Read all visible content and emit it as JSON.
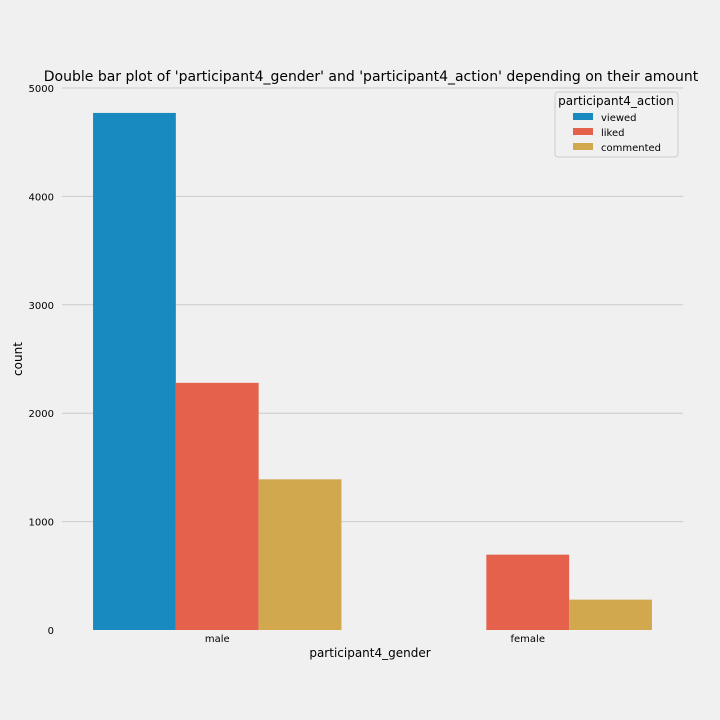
{
  "chart_data": {
    "type": "bar",
    "title": "Double bar plot of 'participant4_gender' and 'participant4_action' depending on their amount",
    "xlabel": "participant4_gender",
    "ylabel": "count",
    "categories": [
      "male",
      "female"
    ],
    "series": [
      {
        "name": "viewed",
        "color": "#188ac0",
        "values": [
          4770,
          0
        ]
      },
      {
        "name": "liked",
        "color": "#e5614b",
        "values": [
          2280,
          695
        ]
      },
      {
        "name": "commented",
        "color": "#d1a84e",
        "values": [
          1390,
          280
        ]
      }
    ],
    "ylim": [
      0,
      5000
    ],
    "yticks": [
      0,
      1000,
      2000,
      3000,
      4000,
      5000
    ],
    "ytick_labels": [
      "0",
      "1000",
      "2000",
      "3000",
      "4000",
      "5000"
    ],
    "legend": {
      "title": "participant4_action",
      "placement": "top-right"
    },
    "grid": "horizontal",
    "colors": {
      "background": "#f0f0f0",
      "grid": "#cbcbcb"
    }
  }
}
